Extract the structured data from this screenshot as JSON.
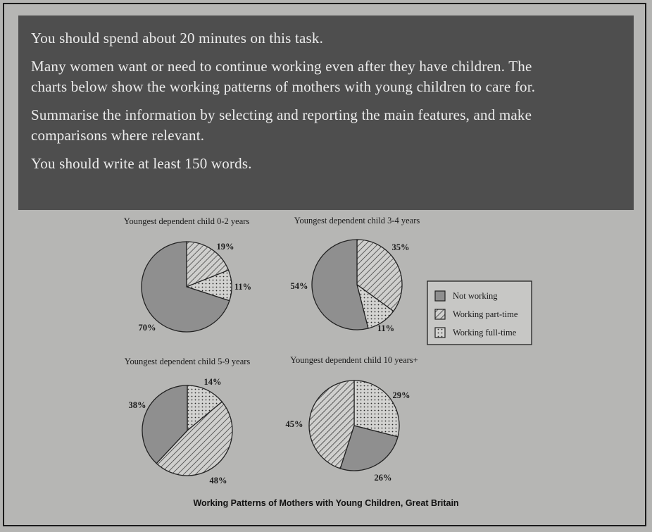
{
  "task": {
    "line1": "You should spend about 20 minutes on this task.",
    "para2_line1": "Many women want or need to continue working even after they have children. The",
    "para2_line2": "charts below show the working patterns of mothers with young children to care for.",
    "para3_line1": "Summarise the information by selecting and reporting the main features, and make",
    "para3_line2": "comparisons where relevant.",
    "line4": "You should write at least 150 words."
  },
  "caption": "Working Patterns of Mothers with Young Children, Great Britain",
  "colors": {
    "not_working": "#8f8f8f",
    "pattern_ink": "#2a2a2a",
    "pie_background": "#c9c9c7"
  },
  "chart_data": {
    "type": "pie",
    "legend": [
      {
        "name": "Not working",
        "pattern": "solid-grey"
      },
      {
        "name": "Working part-time",
        "pattern": "diagonal-hatch"
      },
      {
        "name": "Working full-time",
        "pattern": "dots"
      }
    ],
    "legend_position": "right",
    "charts": [
      {
        "title": "Youngest dependent child 0-2 years",
        "slices": [
          {
            "category": "Working part-time",
            "value": 19,
            "label": "19%"
          },
          {
            "category": "Working full-time",
            "value": 11,
            "label": "11%"
          },
          {
            "category": "Not working",
            "value": 70,
            "label": "70%"
          }
        ]
      },
      {
        "title": "Youngest dependent child 3-4 years",
        "slices": [
          {
            "category": "Working part-time",
            "value": 35,
            "label": "35%"
          },
          {
            "category": "Working full-time",
            "value": 11,
            "label": "11%"
          },
          {
            "category": "Not working",
            "value": 54,
            "label": "54%"
          }
        ]
      },
      {
        "title": "Youngest dependent child 5-9 years",
        "slices": [
          {
            "category": "Working full-time",
            "value": 14,
            "label": "14%"
          },
          {
            "category": "Working part-time",
            "value": 48,
            "label": "48%"
          },
          {
            "category": "Not working",
            "value": 38,
            "label": "38%"
          }
        ]
      },
      {
        "title": "Youngest dependent child 10 years+",
        "slices": [
          {
            "category": "Working full-time",
            "value": 29,
            "label": "29%"
          },
          {
            "category": "Not working",
            "value": 26,
            "label": "26%"
          },
          {
            "category": "Working part-time",
            "value": 45,
            "label": "45%"
          }
        ]
      }
    ]
  }
}
